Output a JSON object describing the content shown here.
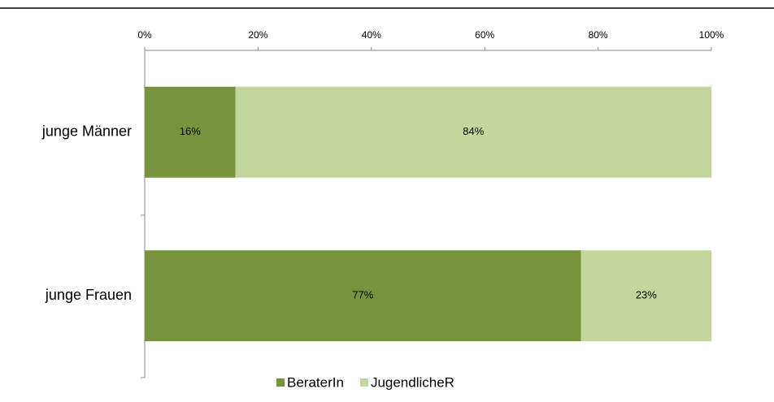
{
  "chart_data": {
    "type": "stacked-bar-horizontal",
    "categories": [
      "junge Männer",
      "junge Frauen"
    ],
    "series": [
      {
        "name": "BeraterIn",
        "color": "#77933c",
        "values": [
          16,
          77
        ],
        "value_labels": [
          "16%",
          "77%"
        ]
      },
      {
        "name": "JugendlicheR",
        "color": "#c3d69b",
        "values": [
          84,
          23
        ],
        "value_labels": [
          "84%",
          "23%"
        ]
      }
    ],
    "xlim": [
      0,
      100
    ],
    "xticks": [
      {
        "value": 0,
        "label": "0%"
      },
      {
        "value": 20,
        "label": "20%"
      },
      {
        "value": 40,
        "label": "40%"
      },
      {
        "value": 60,
        "label": "60%"
      },
      {
        "value": 80,
        "label": "80%"
      },
      {
        "value": 100,
        "label": "100%"
      }
    ],
    "legend": "bottom"
  }
}
